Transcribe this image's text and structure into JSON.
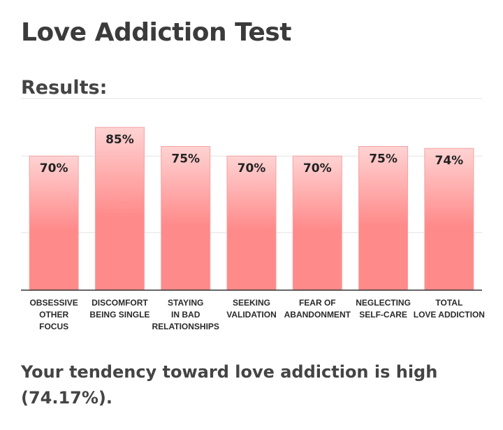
{
  "title": "Love Addiction Test",
  "results_heading": "Results:",
  "summary_text": "Your tendency toward love addiction is high (74.17%).",
  "colors": {
    "bar_top": "#ffd3d3",
    "bar_bottom": "#ff8a8a",
    "bar_border": "#f3a3a3",
    "text": "#3d3d3d",
    "grid": "#e3e3e3",
    "axis": "#333333"
  },
  "chart_data": {
    "type": "bar",
    "title": "",
    "xlabel": "",
    "ylabel": "",
    "ylim": [
      0,
      100
    ],
    "grid": true,
    "categories": [
      [
        "OBSESSIVE",
        "OTHER",
        "FOCUS"
      ],
      [
        "DISCOMFORT",
        "BEING SINGLE"
      ],
      [
        "STAYING",
        "IN BAD",
        "RELATIONSHIPS"
      ],
      [
        "SEEKING",
        "VALIDATION"
      ],
      [
        "FEAR OF",
        "ABANDONMENT"
      ],
      [
        "NEGLECTING",
        "SELF-CARE"
      ],
      [
        "TOTAL",
        "LOVE ADDICTION"
      ]
    ],
    "values": [
      70,
      85,
      75,
      70,
      70,
      75,
      74
    ],
    "value_labels": [
      "70%",
      "85%",
      "75%",
      "70%",
      "70%",
      "75%",
      "74%"
    ]
  }
}
